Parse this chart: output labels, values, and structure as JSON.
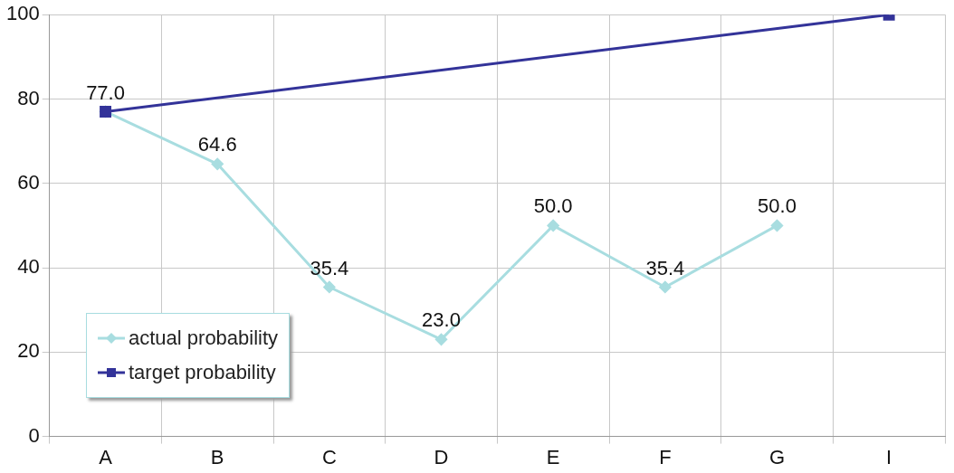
{
  "chart_data": {
    "type": "line",
    "categories": [
      "A",
      "B",
      "C",
      "D",
      "E",
      "F",
      "G",
      "I"
    ],
    "series": [
      {
        "name": "actual probability",
        "color": "#a8dde0",
        "marker": "diamond",
        "values": [
          77,
          64.6,
          35.4,
          23,
          50,
          35.4,
          50,
          null
        ],
        "value_labels": [
          "77.0",
          "64.6",
          "35.4",
          "23.0",
          "50.0",
          "35.4",
          "50.0",
          null
        ]
      },
      {
        "name": "target probability",
        "color": "#333399",
        "marker": "square",
        "values": [
          77,
          null,
          null,
          null,
          null,
          null,
          null,
          100
        ]
      }
    ],
    "ylim": [
      0,
      100
    ],
    "yticks": [
      0,
      20,
      40,
      60,
      80,
      100
    ],
    "grid": true,
    "legend": "bottom left"
  }
}
